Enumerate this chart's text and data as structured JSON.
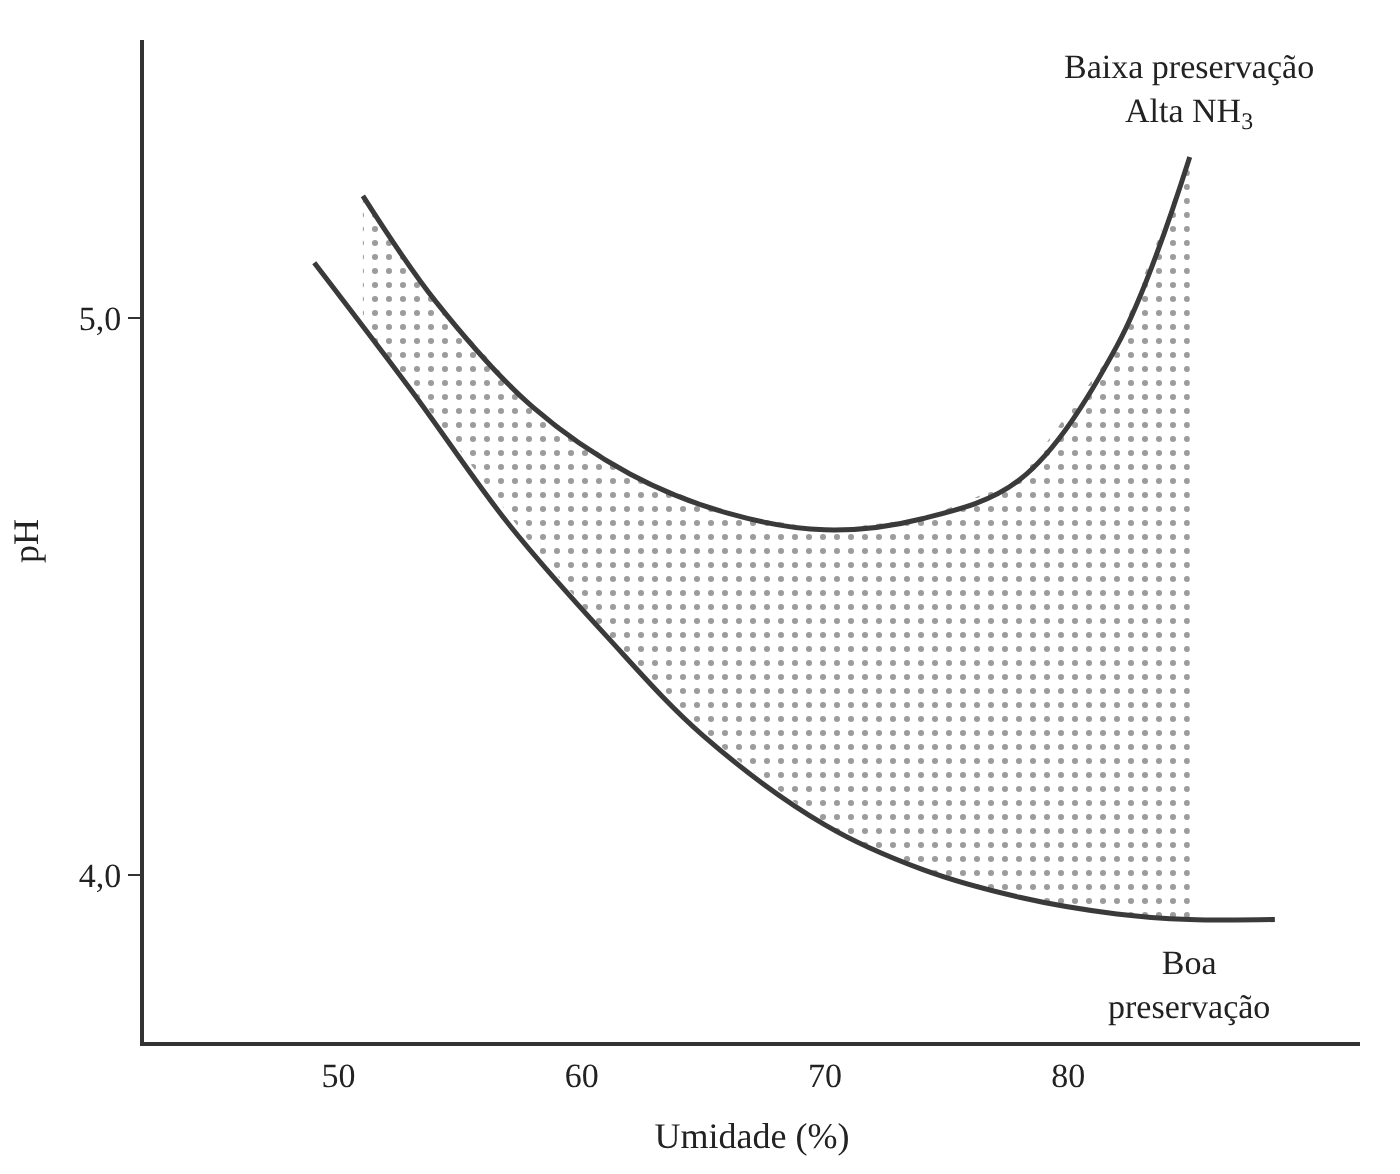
{
  "chart_data": {
    "type": "line",
    "xlabel": "Umidade (%)",
    "ylabel": "pH",
    "xlim": [
      42,
      92
    ],
    "ylim": [
      3.7,
      5.5
    ],
    "xticks": [
      50,
      60,
      70,
      80
    ],
    "yticks": [
      {
        "value": 4,
        "label": "4,0"
      },
      {
        "value": 5,
        "label": "5,0"
      }
    ],
    "marker": "none",
    "line_style": "solid",
    "series": [
      {
        "color": "#3a3a3a",
        "x": [
          51,
          54,
          58,
          62,
          66,
          70,
          74,
          78,
          82,
          85
        ],
        "values": [
          5.22,
          5.03,
          4.84,
          4.72,
          4.65,
          4.62,
          4.64,
          4.71,
          4.95,
          5.29
        ],
        "lower": [
          4.99,
          4.82,
          4.59,
          4.38,
          4.22,
          4.09,
          4.01,
          3.96,
          3.93,
          3.92
        ],
        "upper": [
          5.22,
          5.03,
          4.84,
          4.72,
          4.65,
          4.62,
          4.64,
          4.71,
          4.95,
          5.29
        ]
      },
      {
        "color": "#3a3a3a",
        "x": [
          49,
          53,
          57,
          61,
          65,
          70,
          74,
          78,
          82,
          85,
          88.5
        ],
        "values": [
          5.1,
          4.87,
          4.63,
          4.43,
          4.25,
          4.09,
          4.01,
          3.96,
          3.93,
          3.92,
          3.92
        ]
      }
    ],
    "annotations": [
      {
        "text": "Baixa preservação\nAlta NH$_{3}$",
        "x": 85,
        "y": 5.29
      },
      {
        "text": "Boa\npreservação",
        "x": 85,
        "y": 3.92
      }
    ]
  }
}
